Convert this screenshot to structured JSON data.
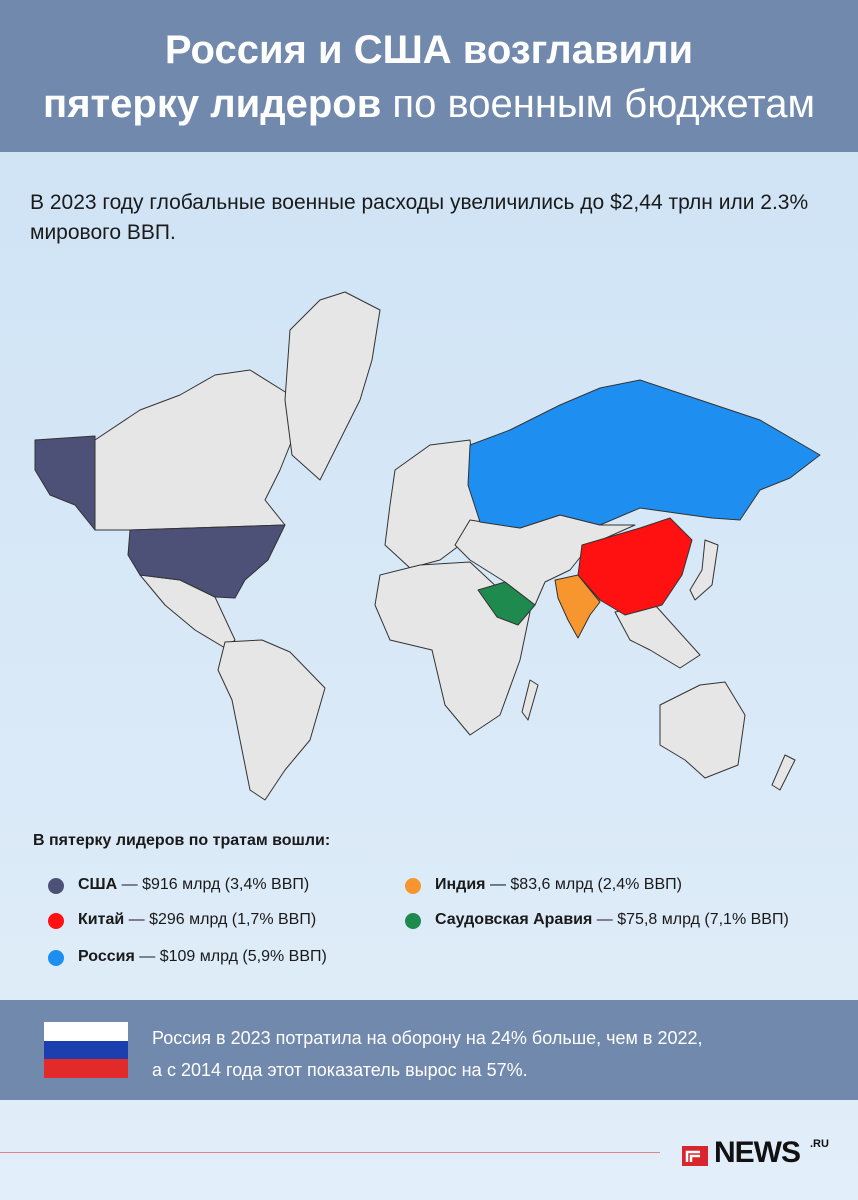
{
  "header": {
    "title_line1": "Россия и США возглавили",
    "title_line2_bold": "пятерку лидеров",
    "title_line2_light": "по военным бюджетам"
  },
  "subtitle": "В 2023 году глобальные военные расходы увеличились до $2,44 трлн или 2.3% мирового ВВП.",
  "legend": {
    "heading": "В пятерку лидеров по тратам вошли:",
    "items": [
      {
        "country": "США",
        "detail": "— $916 млрд (3,4% ВВП)",
        "color": "#4d5178"
      },
      {
        "country": "Китай",
        "detail": "— $296 млрд (1,7% ВВП)",
        "color": "#ff1111"
      },
      {
        "country": "Россия",
        "detail": "— $109 млрд (5,9% ВВП)",
        "color": "#1e8ff0"
      },
      {
        "country": "Индия",
        "detail": "— $83,6 млрд (2,4% ВВП)",
        "color": "#f7962e"
      },
      {
        "country": "Саудовская Аравия",
        "detail": "— $75,8 млрд (7,1% ВВП)",
        "color": "#1f8a4e"
      }
    ]
  },
  "note": {
    "line1": "Россия в 2023 потратила на оборону на 24% больше, чем в 2022,",
    "line2": "а с 2014 года этот показатель вырос на 57%."
  },
  "logo": {
    "name": "NEWS",
    "suffix": ".RU"
  }
}
